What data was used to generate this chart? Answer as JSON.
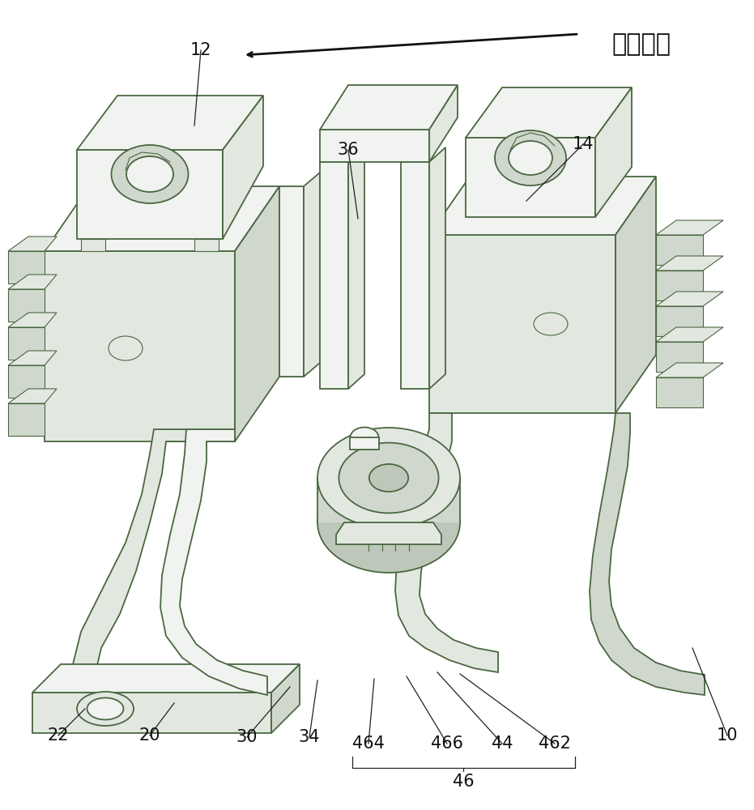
{
  "bg_color": "#ffffff",
  "line_color": "#4a6741",
  "line_color_dark": "#2a3a28",
  "line_color_mid": "#5a7a50",
  "fill_light": "#e8ede6",
  "fill_mid": "#d8e0d5",
  "fill_dark": "#c5d0c2",
  "fill_shade": "#b8c5b5",
  "figsize": [
    9.31,
    10.0
  ],
  "dpi": 100,
  "direction_text": "第一方向",
  "label_color": "#111111",
  "label_fontsize": 15
}
